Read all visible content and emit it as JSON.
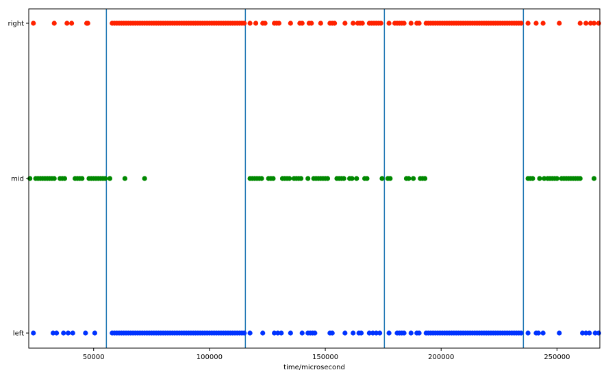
{
  "chart_data": {
    "type": "scatter",
    "title": "",
    "xlabel": "time/microsecond",
    "ylabel": "",
    "xlim": [
      22000,
      268500
    ],
    "categories": [
      "left",
      "mid",
      "right"
    ],
    "x_ticks": [
      50000,
      100000,
      150000,
      200000,
      250000
    ],
    "x_tick_labels": [
      "50000",
      "100000",
      "150000",
      "200000",
      "250000"
    ],
    "grid": false,
    "legend": "none",
    "vlines": {
      "color": "#1f77b4",
      "x": [
        55500,
        115500,
        175500,
        235500
      ]
    },
    "series": [
      {
        "category": "right",
        "color": "#ff2200",
        "x": [
          24000,
          33000,
          38500,
          40500,
          47000,
          47500,
          58000,
          59000,
          60000,
          61000,
          62000,
          63000,
          64000,
          65000,
          66000,
          67000,
          68000,
          69000,
          70000,
          71000,
          72000,
          73000,
          74000,
          75000,
          76000,
          77000,
          78000,
          79000,
          80000,
          81000,
          82000,
          83000,
          84000,
          85000,
          86000,
          87000,
          88000,
          89000,
          90000,
          91000,
          92000,
          93000,
          94000,
          95000,
          96000,
          97000,
          98000,
          99000,
          100000,
          101000,
          102000,
          103000,
          104000,
          105000,
          106000,
          107000,
          108000,
          109000,
          110000,
          111000,
          112000,
          113000,
          114000,
          115000,
          117500,
          120000,
          123000,
          124000,
          128000,
          129000,
          130000,
          135000,
          139000,
          140000,
          143000,
          144000,
          148000,
          152000,
          153000,
          154000,
          158500,
          162000,
          164000,
          165000,
          166000,
          169000,
          170000,
          171000,
          172000,
          173000,
          174000,
          177500,
          180000,
          181000,
          182000,
          183000,
          184000,
          187000,
          189500,
          190500,
          193500,
          194500,
          195500,
          196500,
          197500,
          198500,
          199500,
          200500,
          201500,
          202500,
          203500,
          204500,
          205500,
          206500,
          207500,
          208500,
          209500,
          210500,
          211500,
          212500,
          213500,
          214500,
          215500,
          216500,
          217500,
          218500,
          219500,
          220500,
          221500,
          222500,
          223500,
          224500,
          225500,
          226500,
          227500,
          228500,
          229500,
          230500,
          231500,
          232500,
          233500,
          234500,
          237500,
          241000,
          244000,
          251000,
          260000,
          262500,
          264500,
          266000,
          268000
        ]
      },
      {
        "category": "mid",
        "color": "#008800",
        "x": [
          22500,
          25000,
          26000,
          27000,
          28000,
          29000,
          30000,
          31000,
          32000,
          33000,
          35500,
          36500,
          37500,
          42000,
          43000,
          44000,
          45000,
          48000,
          49000,
          50000,
          51000,
          52000,
          53000,
          54000,
          55000,
          57000,
          63500,
          72000,
          117500,
          118500,
          119500,
          120500,
          121500,
          122500,
          125500,
          126500,
          127500,
          131500,
          132500,
          133500,
          134500,
          136500,
          137500,
          138500,
          139500,
          142500,
          145000,
          146000,
          147000,
          148000,
          149000,
          150000,
          151000,
          155000,
          156000,
          157000,
          158000,
          160500,
          161500,
          163500,
          167000,
          168000,
          174500,
          177000,
          178000,
          185000,
          186000,
          188000,
          191000,
          192000,
          193000,
          237500,
          238500,
          239500,
          242500,
          244500,
          246000,
          247000,
          248000,
          249000,
          250000,
          252000,
          253000,
          254000,
          255000,
          256000,
          257000,
          258000,
          259000,
          260000,
          266000
        ]
      },
      {
        "category": "left",
        "color": "#0033ff",
        "x": [
          24000,
          32500,
          34000,
          37000,
          39000,
          41000,
          46500,
          50500,
          58000,
          59000,
          60000,
          61000,
          62000,
          63000,
          64000,
          65000,
          66000,
          67000,
          68000,
          69000,
          70000,
          71000,
          72000,
          73000,
          74000,
          75000,
          76000,
          77000,
          78000,
          79000,
          80000,
          81000,
          82000,
          83000,
          84000,
          85000,
          86000,
          87000,
          88000,
          89000,
          90000,
          91000,
          92000,
          93000,
          94000,
          95000,
          96000,
          97000,
          98000,
          99000,
          100000,
          101000,
          102000,
          103000,
          104000,
          105000,
          106000,
          107000,
          108000,
          109000,
          110000,
          111000,
          112000,
          113000,
          114000,
          115000,
          117500,
          123000,
          128000,
          129500,
          131000,
          135000,
          140000,
          142500,
          143500,
          144500,
          145500,
          152000,
          153000,
          158500,
          162000,
          164500,
          165500,
          169000,
          170500,
          172000,
          173500,
          177500,
          181000,
          182000,
          183000,
          184000,
          187000,
          189500,
          190500,
          193500,
          194500,
          195500,
          196500,
          197500,
          198500,
          199500,
          200500,
          201500,
          202500,
          203500,
          204500,
          205500,
          206500,
          207500,
          208500,
          209500,
          210500,
          211500,
          212500,
          213500,
          214500,
          215500,
          216500,
          217500,
          218500,
          219500,
          220500,
          221500,
          222500,
          223500,
          224500,
          225500,
          226500,
          227500,
          228500,
          229500,
          230500,
          231500,
          232500,
          233500,
          234500,
          237500,
          241000,
          242000,
          244000,
          251000,
          261000,
          262500,
          264000,
          266500,
          268000
        ]
      }
    ]
  }
}
